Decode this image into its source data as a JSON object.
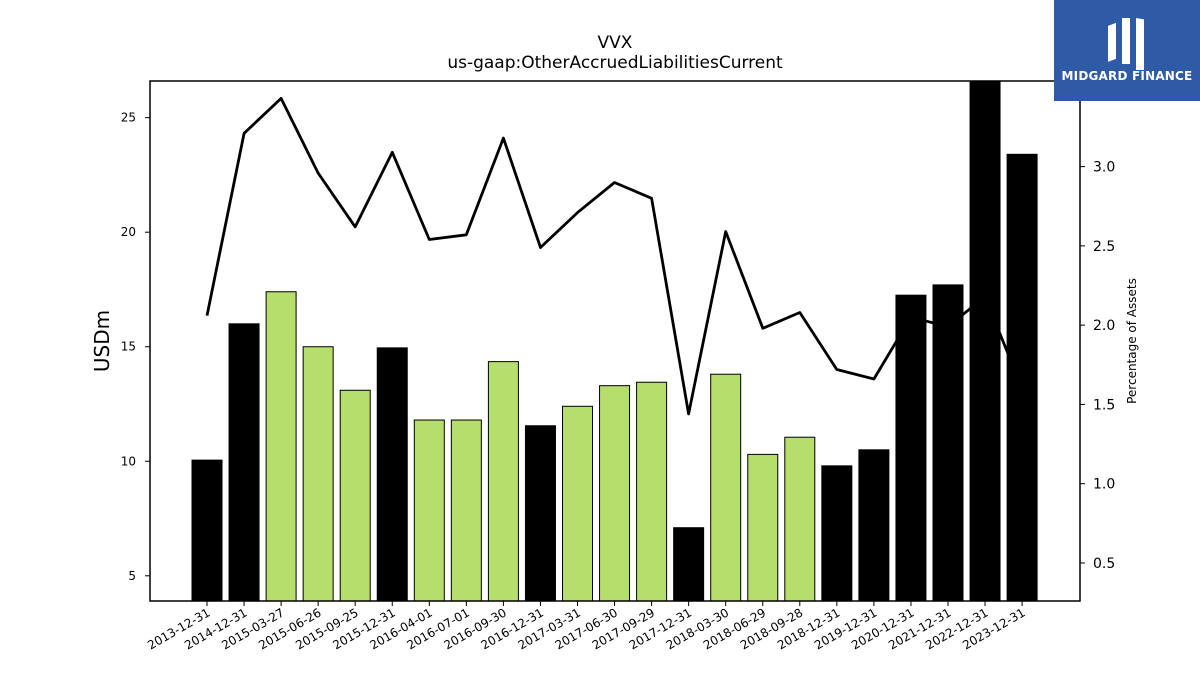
{
  "chart_data": {
    "type": "bar",
    "title": "VVX",
    "subtitle": "us-gaap:OtherAccruedLiabilitiesCurrent",
    "ylabel": "USDm",
    "y2label": "Percentage of Assets",
    "ylim": [
      3.9,
      26.6
    ],
    "y2lim": [
      0.26,
      3.54
    ],
    "yticks": [
      5,
      10,
      15,
      20,
      25
    ],
    "y2ticks": [
      "0.5",
      "1.0",
      "1.5",
      "2.0",
      "2.5",
      "3.0"
    ],
    "categories": [
      "2013-12-31",
      "2014-12-31",
      "2015-03-27",
      "2015-06-26",
      "2015-09-25",
      "2015-12-31",
      "2016-04-01",
      "2016-07-01",
      "2016-09-30",
      "2016-12-31",
      "2017-03-31",
      "2017-06-30",
      "2017-09-29",
      "2017-12-31",
      "2018-03-30",
      "2018-06-29",
      "2018-09-28",
      "2018-12-31",
      "2019-12-31",
      "2020-12-31",
      "2021-12-31",
      "2022-12-31",
      "2023-12-31"
    ],
    "series": [
      {
        "values": [
          10.05,
          16.0,
          17.4,
          15.0,
          13.1,
          14.95,
          11.8,
          11.8,
          14.35,
          11.55,
          12.4,
          13.3,
          13.45,
          7.1,
          13.8,
          10.3,
          11.05,
          9.8,
          10.5,
          17.25,
          17.7,
          26.6,
          23.4
        ],
        "kinds": [
          "annual",
          "annual",
          "quarterly",
          "quarterly",
          "quarterly",
          "annual",
          "quarterly",
          "quarterly",
          "quarterly",
          "annual",
          "quarterly",
          "quarterly",
          "quarterly",
          "annual",
          "quarterly",
          "quarterly",
          "quarterly",
          "annual",
          "annual",
          "annual",
          "annual",
          "annual",
          "annual"
        ]
      },
      {
        "axis": "right",
        "type": "line",
        "values": [
          2.06,
          3.21,
          3.43,
          2.96,
          2.62,
          3.09,
          2.54,
          2.57,
          3.18,
          2.49,
          2.71,
          2.9,
          2.8,
          1.44,
          2.59,
          1.98,
          2.08,
          1.72,
          1.66,
          2.05,
          1.99,
          2.18,
          1.6
        ]
      }
    ],
    "colors": {
      "annual": "#000000",
      "quarterly": "#b5de6c",
      "line": "#000000",
      "edge": "#000000"
    }
  },
  "logo": {
    "text": "MIDGARD FINANCE",
    "background": "#2f5aa6"
  }
}
